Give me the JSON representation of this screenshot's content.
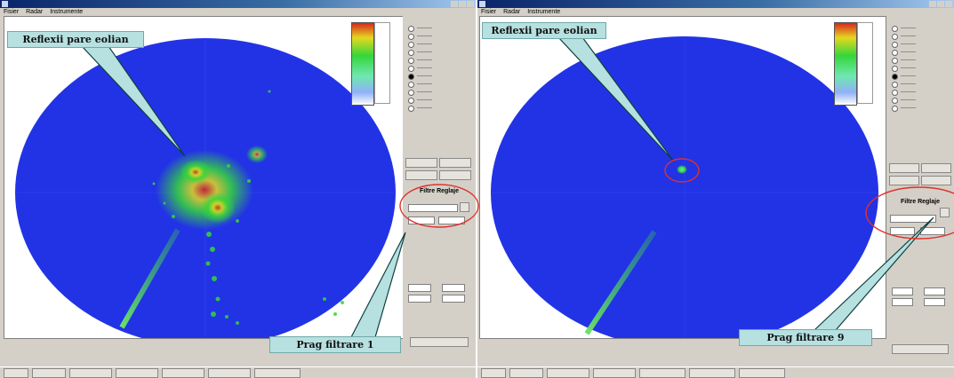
{
  "menu": [
    "Fisier",
    "Radar",
    "Instrumente"
  ],
  "left": {
    "callout_top": "Reflexii pare eolian",
    "callout_bottom": "Prag filtrare 1"
  },
  "right": {
    "callout_top": "Reflexii pare eolian",
    "callout_bottom": "Prag filtrare 9"
  },
  "panel": {
    "filter_title": "Filtre Reglaje"
  },
  "colors": {
    "radar_blue": "#2233e6",
    "echo_green": "#35d63a",
    "echo_yellow": "#e6d81f",
    "echo_red": "#d8261d",
    "ellipse_red": "#e0312b",
    "callout_fill": "#b7e0e0",
    "callout_pointer": "#0f3f3f"
  }
}
